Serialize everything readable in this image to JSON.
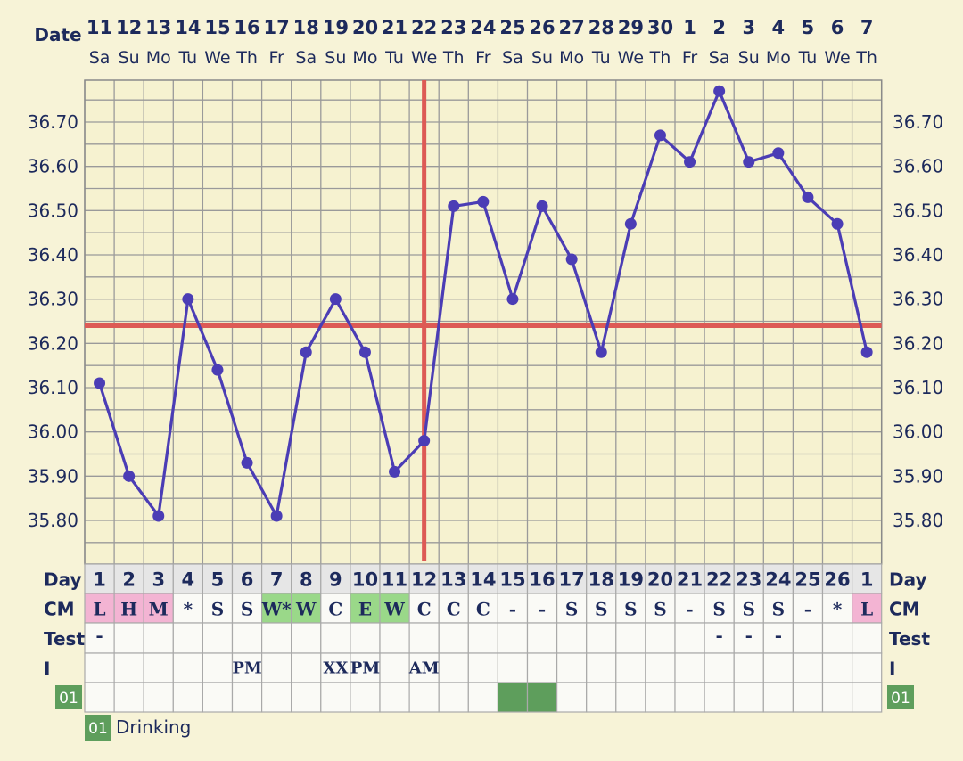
{
  "chart_data": {
    "type": "line",
    "date_header_label": "Date",
    "dates": [
      "11",
      "12",
      "13",
      "14",
      "15",
      "16",
      "17",
      "18",
      "19",
      "20",
      "21",
      "22",
      "23",
      "24",
      "25",
      "26",
      "27",
      "28",
      "29",
      "30",
      "1",
      "2",
      "3",
      "4",
      "5",
      "6",
      "7"
    ],
    "weekdays": [
      "Sa",
      "Su",
      "Mo",
      "Tu",
      "We",
      "Th",
      "Fr",
      "Sa",
      "Su",
      "Mo",
      "Tu",
      "We",
      "Th",
      "Fr",
      "Sa",
      "Su",
      "Mo",
      "Tu",
      "We",
      "Th",
      "Fr",
      "Sa",
      "Su",
      "Mo",
      "Tu",
      "We",
      "Th"
    ],
    "temperatures": [
      36.11,
      35.9,
      35.81,
      36.3,
      36.14,
      35.93,
      35.81,
      36.18,
      36.3,
      36.18,
      35.91,
      35.98,
      36.51,
      36.52,
      36.3,
      36.51,
      36.39,
      36.18,
      36.47,
      36.67,
      36.61,
      36.77,
      36.61,
      36.63,
      36.53,
      36.47,
      36.18
    ],
    "ylim": [
      35.75,
      36.82
    ],
    "yticks": [
      "35.80",
      "35.90",
      "36.00",
      "36.10",
      "36.20",
      "36.30",
      "36.40",
      "36.50",
      "36.60",
      "36.70"
    ],
    "coverline_value": 36.24,
    "ovulation_day_index": 11,
    "grid": true,
    "line_color": "#4b3db5",
    "coverline_color": "#dd5a55",
    "rows": {
      "day": {
        "label": "Day",
        "values": [
          "1",
          "2",
          "3",
          "4",
          "5",
          "6",
          "7",
          "8",
          "9",
          "10",
          "11",
          "12",
          "13",
          "14",
          "15",
          "16",
          "17",
          "18",
          "19",
          "20",
          "21",
          "22",
          "23",
          "24",
          "25",
          "26",
          "1"
        ]
      },
      "cm": {
        "label": "CM",
        "values": [
          "L",
          "H",
          "M",
          "*",
          "S",
          "S",
          "W*",
          "W",
          "C",
          "E",
          "W",
          "C",
          "C",
          "C",
          "-",
          "-",
          "S",
          "S",
          "S",
          "S",
          "-",
          "S",
          "S",
          "S",
          "-",
          "*",
          "L"
        ],
        "highlights": [
          "pink",
          "pink",
          "pink",
          "",
          "",
          "",
          "green",
          "green",
          "",
          "green",
          "green",
          "",
          "",
          "",
          "",
          "",
          "",
          "",
          "",
          "",
          "",
          "",
          "",
          "",
          "",
          "",
          "pink"
        ]
      },
      "test": {
        "label": "Test",
        "values": [
          "-",
          "",
          "",
          "",
          "",
          "",
          "",
          "",
          "",
          "",
          "",
          "",
          "",
          "",
          "",
          "",
          "",
          "",
          "",
          "",
          "",
          "-",
          "-",
          "-",
          "",
          "",
          ""
        ]
      },
      "intercourse": {
        "label": "I",
        "values": [
          "",
          "",
          "",
          "",
          "",
          "PM",
          "",
          "",
          "XX",
          "PM",
          "",
          "AM",
          "",
          "",
          "",
          "",
          "",
          "",
          "",
          "",
          "",
          "",
          "",
          "",
          "",
          "",
          ""
        ]
      },
      "custom": {
        "badge": "01",
        "filled": [
          14,
          15
        ]
      }
    },
    "legend": [
      {
        "badge": "01",
        "label": "Drinking"
      }
    ],
    "colors": {
      "pink": "#f3b4d3",
      "green": "#9ad889",
      "badge_green": "#5e9e5c",
      "day_row_bg": "#e6e6e6",
      "cell_bg": "#fafaf6",
      "grid": "#9a9a9a"
    }
  }
}
